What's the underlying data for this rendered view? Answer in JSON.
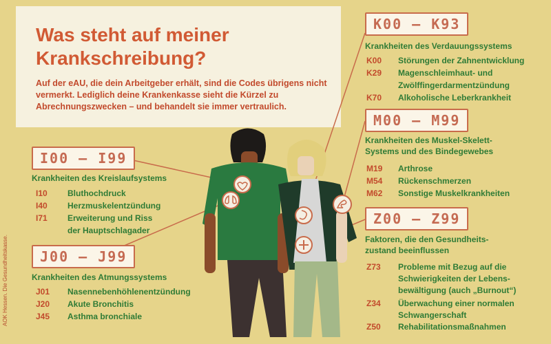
{
  "header": {
    "title": "Was steht auf meiner\nKrankschreibung?",
    "intro": "Auf der eAU, die dein Arbeitgeber erhält, sind die Codes übrigens nicht vermerkt. Lediglich deine Krankenkasse sieht die Kürzel zu Abrechnungszwecken – und behandelt sie immer vertraulich."
  },
  "credit": "AOK Hessen. Die Gesundheitskasse.",
  "colors": {
    "background": "#e6d48a",
    "panel": "#f6f1df",
    "accent_red": "#c24a2c",
    "accent_green": "#2f7b36"
  },
  "sections": {
    "kreislauf": {
      "range": "I00 – I99",
      "heading": "Krankheiten des Kreislaufsystems",
      "items": [
        {
          "code": "I10",
          "text": "Bluthochdruck"
        },
        {
          "code": "I40",
          "text": "Herzmuskelentzündung"
        },
        {
          "code": "I71",
          "text": "Erweiterung und Riss"
        },
        {
          "code": "",
          "text": "der Hauptschlagader"
        }
      ]
    },
    "atmung": {
      "range": "J00 – J99",
      "heading": "Krankheiten des Atmungssystems",
      "items": [
        {
          "code": "J01",
          "text": "Nasennebenhöhlenentzündung"
        },
        {
          "code": "J20",
          "text": "Akute Bronchitis"
        },
        {
          "code": "J45",
          "text": "Asthma bronchiale"
        }
      ]
    },
    "verdauung": {
      "range": "K00 – K93",
      "heading": "Krankheiten des Verdauungssystems",
      "items": [
        {
          "code": "K00",
          "text": "Störungen der Zahnentwicklung"
        },
        {
          "code": "K29",
          "text": "Magenschleimhaut- und"
        },
        {
          "code": "",
          "text": "Zwölffingerdarmentzündung"
        },
        {
          "code": "K70",
          "text": "Alkoholische Leberkrankheit"
        }
      ]
    },
    "muskel": {
      "range": "M00 – M99",
      "heading": "Krankheiten des Muskel-Skelett-\nSystems und des Bindegewebes",
      "items": [
        {
          "code": "M19",
          "text": "Arthrose"
        },
        {
          "code": "M54",
          "text": "Rückenschmerzen"
        },
        {
          "code": "M62",
          "text": "Sonstige Muskelkrankheiten"
        }
      ]
    },
    "faktoren": {
      "range": "Z00 – Z99",
      "heading": "Faktoren, die den Gesundheits-\nzustand beeinflussen",
      "items": [
        {
          "code": "Z73",
          "text": "Probleme mit Bezug auf die"
        },
        {
          "code": "",
          "text": "Schwierigkeiten der Lebens-"
        },
        {
          "code": "",
          "text": "bewältigung (auch „Burnout“)"
        },
        {
          "code": "Z34",
          "text": "Überwachung einer normalen"
        },
        {
          "code": "",
          "text": "Schwangerschaft"
        },
        {
          "code": "Z50",
          "text": "Rehabilitationsmaßnahmen"
        }
      ]
    }
  }
}
